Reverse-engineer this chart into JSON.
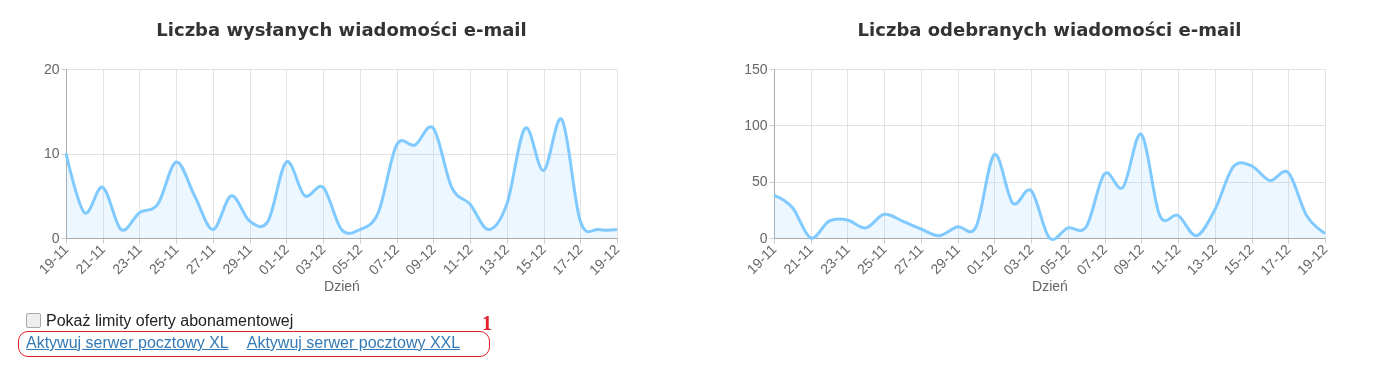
{
  "chart_data": [
    {
      "type": "area",
      "title": "Liczba wysłanych wiadomości e-mail",
      "xlabel": "Dzień",
      "categories": [
        "19-11",
        null,
        "21-11",
        null,
        "23-11",
        null,
        "25-11",
        null,
        "27-11",
        null,
        "29-11",
        null,
        "01-12",
        null,
        "03-12",
        null,
        "05-12",
        null,
        "07-12",
        null,
        "09-12",
        null,
        "11-12",
        null,
        "13-12",
        null,
        "15-12",
        null,
        "17-12",
        null,
        "19-12"
      ],
      "series": [
        {
          "color": "#80caff",
          "values": [
            10,
            3,
            6,
            1,
            3,
            4,
            9,
            5,
            1,
            5,
            2,
            2,
            9,
            5,
            6,
            1,
            1,
            3,
            11,
            11,
            13,
            6,
            4,
            1,
            4,
            13,
            8,
            14,
            2,
            1,
            1
          ]
        }
      ],
      "ylim": [
        0,
        20
      ],
      "yticks": [
        0,
        10,
        20
      ],
      "grid": true,
      "annotations": [
        "Pokaż limity oferty abonamentowej",
        "Aktywuj serwer pocztowy XL",
        "Aktywuj serwer pocztowy XXL",
        "1"
      ]
    },
    {
      "type": "area",
      "title": "Liczba odebranych wiadomości e-mail",
      "xlabel": "Dzień",
      "categories": [
        "19-11",
        null,
        "21-11",
        null,
        "23-11",
        null,
        "25-11",
        null,
        "27-11",
        null,
        "29-11",
        null,
        "01-12",
        null,
        "03-12",
        null,
        "05-12",
        null,
        "07-12",
        null,
        "09-12",
        null,
        "11-12",
        null,
        "13-12",
        null,
        "15-12",
        null,
        "17-12",
        null,
        "19-12"
      ],
      "series": [
        {
          "color": "#80caff",
          "values": [
            38,
            27,
            0,
            15,
            16,
            9,
            21,
            15,
            8,
            2,
            10,
            10,
            74,
            31,
            42,
            0,
            9,
            10,
            57,
            45,
            92,
            20,
            20,
            2,
            25,
            63,
            64,
            51,
            58,
            20,
            4
          ]
        }
      ],
      "ylim": [
        0,
        150
      ],
      "yticks": [
        0,
        50,
        100,
        150
      ],
      "grid": true
    }
  ]
}
